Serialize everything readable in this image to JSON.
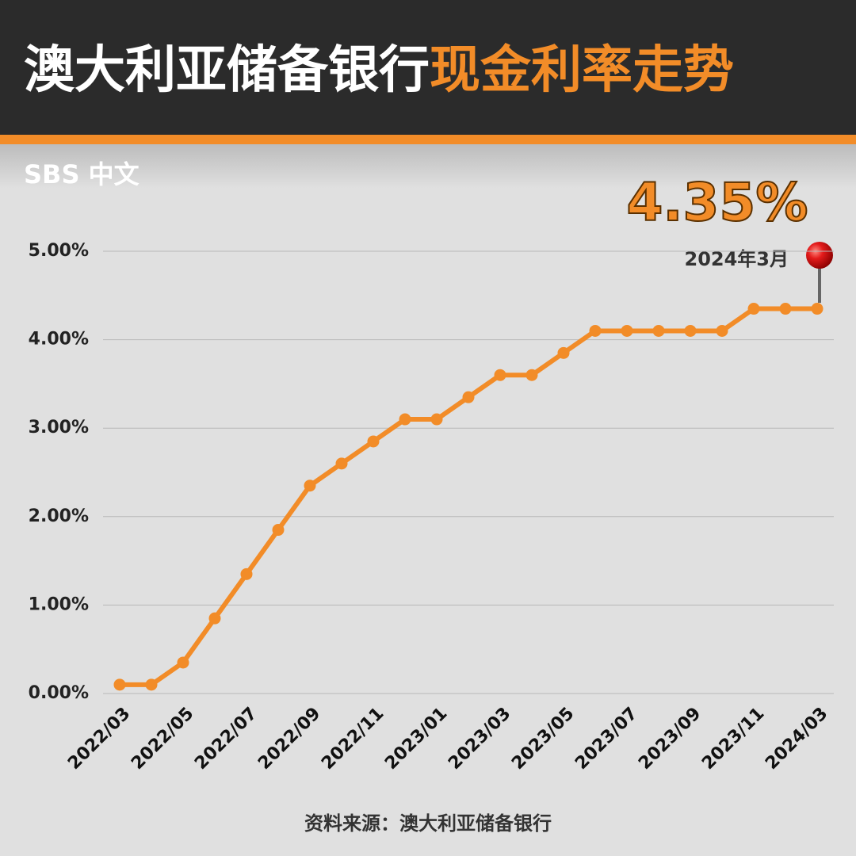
{
  "brand": "SBS 中文",
  "chart_data": {
    "type": "line",
    "title": {
      "main": "澳大利亚储备银行",
      "highlight": "现金利率走势"
    },
    "annotation_value": "4.35%",
    "annotation_date": "2024年3月",
    "source": "资料来源：澳大利亚储备银行",
    "categories": [
      "2022/03",
      null,
      "2022/05",
      null,
      "2022/07",
      null,
      "2022/09",
      null,
      "2022/11",
      null,
      "2023/01",
      null,
      "2023/03",
      null,
      "2023/05",
      null,
      "2023/07",
      null,
      "2023/09",
      null,
      "2023/11",
      null,
      "2024/03"
    ],
    "values": [
      0.1,
      0.1,
      0.35,
      0.85,
      1.35,
      1.85,
      2.35,
      2.6,
      2.85,
      3.1,
      3.1,
      3.35,
      3.6,
      3.6,
      3.85,
      4.1,
      4.1,
      4.1,
      4.1,
      4.1,
      4.35,
      4.35,
      4.35
    ],
    "color": "#f28c28",
    "ylim": [
      0,
      5
    ],
    "yticks": [
      {
        "value": 0,
        "label": "0.00%"
      },
      {
        "value": 1,
        "label": "1.00%"
      },
      {
        "value": 2,
        "label": "2.00%"
      },
      {
        "value": 3,
        "label": "3.00%"
      },
      {
        "value": 4,
        "label": "4.00%"
      },
      {
        "value": 5,
        "label": "5.00%"
      }
    ],
    "grid": true
  }
}
